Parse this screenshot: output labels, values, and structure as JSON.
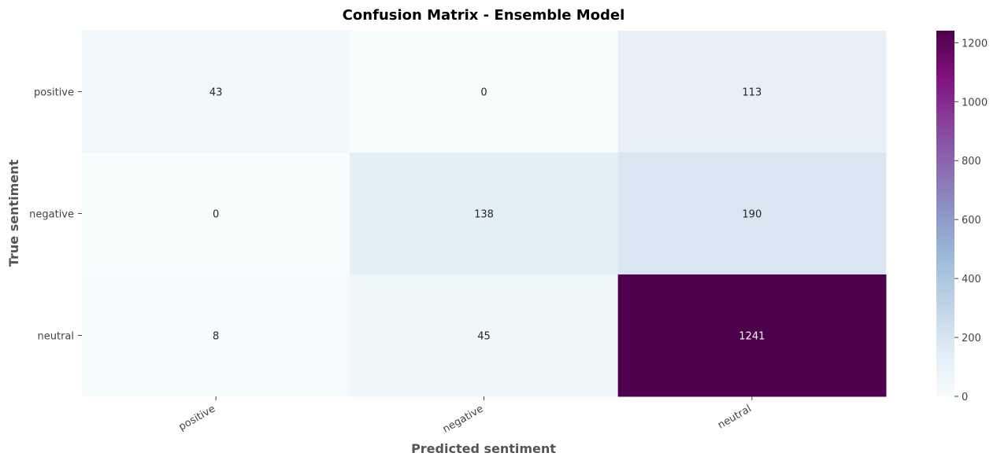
{
  "chart_data": {
    "type": "heatmap",
    "title": "Confusion Matrix - Ensemble Model",
    "xlabel": "Predicted sentiment",
    "ylabel": "True sentiment",
    "x_categories": [
      "positive",
      "negative",
      "neutral"
    ],
    "y_categories": [
      "positive",
      "negative",
      "neutral"
    ],
    "values": [
      [
        43,
        0,
        113
      ],
      [
        0,
        138,
        190
      ],
      [
        8,
        45,
        1241
      ]
    ],
    "colorbar": {
      "min": 0,
      "max": 1241,
      "ticks": [
        "0",
        "200",
        "400",
        "600",
        "800",
        "1000",
        "1200"
      ],
      "colormap": "BuPu",
      "colors": [
        "#f7fcfd",
        "#e0ecf4",
        "#bfd3e6",
        "#9ebcda",
        "#8c96c6",
        "#8c6bb1",
        "#88419d",
        "#810f7c",
        "#4d004b"
      ]
    }
  }
}
